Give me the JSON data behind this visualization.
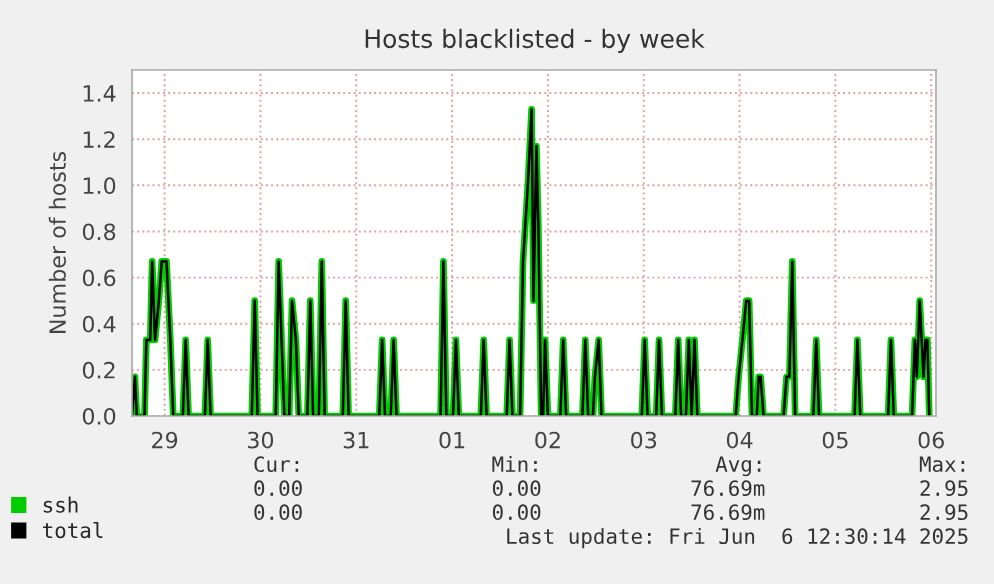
{
  "chart_data": {
    "type": "line",
    "title": "Hosts blacklisted - by week",
    "ylabel": "Number of hosts",
    "x": [
      "2025-05-28T15:50",
      "2025-05-28T16:34",
      "2025-05-28T17:02",
      "2025-05-28T18:58",
      "2025-05-28T19:26",
      "2025-05-28T20:24",
      "2025-05-28T20:53",
      "2025-05-28T21:36",
      "2025-05-28T22:34",
      "2025-05-28T23:17",
      "2025-05-29T00:29",
      "2025-05-29T01:26",
      "2025-05-29T02:10",
      "2025-05-29T04:34",
      "2025-05-29T05:17",
      "2025-05-29T06:00",
      "2025-05-29T10:05",
      "2025-05-29T10:48",
      "2025-05-29T11:31",
      "2025-05-29T21:50",
      "2025-05-29T22:34",
      "2025-05-29T23:17",
      "2025-05-30T03:50",
      "2025-05-30T04:34",
      "2025-05-30T06:00",
      "2025-05-30T07:12",
      "2025-05-30T07:55",
      "2025-05-30T08:53",
      "2025-05-30T09:36",
      "2025-05-30T11:46",
      "2025-05-30T12:29",
      "2025-05-30T13:12",
      "2025-05-30T14:38",
      "2025-05-30T15:22",
      "2025-05-30T16:05",
      "2025-05-30T20:38",
      "2025-05-30T21:22",
      "2025-05-30T22:05",
      "2025-05-31T05:46",
      "2025-05-31T06:29",
      "2025-05-31T07:12",
      "2025-05-31T08:38",
      "2025-05-31T09:22",
      "2025-05-31T10:05",
      "2025-05-31T21:07",
      "2025-05-31T21:50",
      "2025-05-31T22:34",
      "2025-06-01T00:14",
      "2025-06-01T00:58",
      "2025-06-01T01:41",
      "2025-06-01T07:12",
      "2025-06-01T07:55",
      "2025-06-01T08:38",
      "2025-06-01T13:41",
      "2025-06-01T14:24",
      "2025-06-01T15:07",
      "2025-06-01T17:02",
      "2025-06-01T17:46",
      "2025-06-01T18:58",
      "2025-06-01T19:55",
      "2025-06-01T20:24",
      "2025-06-01T21:07",
      "2025-06-01T21:36",
      "2025-06-01T22:19",
      "2025-06-01T22:48",
      "2025-06-01T23:17",
      "2025-06-02T00:00",
      "2025-06-02T03:07",
      "2025-06-02T03:50",
      "2025-06-02T04:34",
      "2025-06-02T08:38",
      "2025-06-02T09:22",
      "2025-06-02T10:05",
      "2025-06-02T11:17",
      "2025-06-02T11:46",
      "2025-06-02T12:43",
      "2025-06-02T13:26",
      "2025-06-02T23:31",
      "2025-06-03T00:14",
      "2025-06-03T00:58",
      "2025-06-03T03:07",
      "2025-06-03T03:50",
      "2025-06-03T04:34",
      "2025-06-03T07:55",
      "2025-06-03T08:38",
      "2025-06-03T09:22",
      "2025-06-03T10:34",
      "2025-06-03T11:17",
      "2025-06-03T12:00",
      "2025-06-03T12:43",
      "2025-06-03T13:26",
      "2025-06-03T23:02",
      "2025-06-03T23:46",
      "2025-06-04T00:43",
      "2025-06-04T01:41",
      "2025-06-04T02:24",
      "2025-06-04T03:07",
      "2025-06-04T04:19",
      "2025-06-04T04:48",
      "2025-06-04T05:17",
      "2025-06-04T06:00",
      "2025-06-04T11:02",
      "2025-06-04T11:46",
      "2025-06-04T12:29",
      "2025-06-04T13:12",
      "2025-06-04T13:55",
      "2025-06-04T18:29",
      "2025-06-04T19:12",
      "2025-06-04T19:55",
      "2025-06-05T04:48",
      "2025-06-05T05:31",
      "2025-06-05T06:14",
      "2025-06-05T13:12",
      "2025-06-05T13:55",
      "2025-06-05T14:38",
      "2025-06-05T19:12",
      "2025-06-05T19:55",
      "2025-06-05T20:24",
      "2025-06-05T21:07",
      "2025-06-05T22:05",
      "2025-06-05T22:34",
      "2025-06-05T23:02",
      "2025-06-05T23:31"
    ],
    "series": [
      {
        "name": "ssh",
        "color": "#00cc00",
        "values": [
          0,
          0.17,
          0,
          0,
          0.33,
          0.33,
          0.67,
          0.33,
          0.5,
          0.67,
          0.67,
          0.33,
          0,
          0,
          0.33,
          0,
          0,
          0.33,
          0,
          0,
          0.5,
          0,
          0,
          0.67,
          0,
          0,
          0.5,
          0.33,
          0,
          0,
          0.5,
          0,
          0,
          0.67,
          0,
          0,
          0.5,
          0,
          0,
          0.33,
          0,
          0,
          0.33,
          0,
          0,
          0.67,
          0,
          0,
          0.33,
          0,
          0,
          0.33,
          0,
          0,
          0.33,
          0,
          0,
          0.67,
          1.0,
          1.33,
          0.5,
          1.17,
          0.83,
          0,
          0,
          0.33,
          0,
          0,
          0.33,
          0,
          0,
          0.33,
          0,
          0,
          0.17,
          0.33,
          0,
          0,
          0.33,
          0,
          0,
          0.33,
          0,
          0,
          0.33,
          0,
          0,
          0.33,
          0,
          0.33,
          0,
          0,
          0.17,
          0.33,
          0.5,
          0.5,
          0,
          0,
          0.17,
          0.17,
          0,
          0,
          0.17,
          0.17,
          0.67,
          0,
          0,
          0.33,
          0,
          0,
          0.33,
          0,
          0,
          0.33,
          0,
          0,
          0.33,
          0.17,
          0.5,
          0.17,
          0.33,
          0.33,
          0
        ]
      },
      {
        "name": "total",
        "color": "#000000",
        "values": [
          0,
          0.17,
          0,
          0,
          0.33,
          0.33,
          0.67,
          0.33,
          0.5,
          0.67,
          0.67,
          0.33,
          0,
          0,
          0.33,
          0,
          0,
          0.33,
          0,
          0,
          0.5,
          0,
          0,
          0.67,
          0,
          0,
          0.5,
          0.33,
          0,
          0,
          0.5,
          0,
          0,
          0.67,
          0,
          0,
          0.5,
          0,
          0,
          0.33,
          0,
          0,
          0.33,
          0,
          0,
          0.67,
          0,
          0,
          0.33,
          0,
          0,
          0.33,
          0,
          0,
          0.33,
          0,
          0,
          0.67,
          1.0,
          1.33,
          0.5,
          1.17,
          0.83,
          0,
          0,
          0.33,
          0,
          0,
          0.33,
          0,
          0,
          0.33,
          0,
          0,
          0.17,
          0.33,
          0,
          0,
          0.33,
          0,
          0,
          0.33,
          0,
          0,
          0.33,
          0,
          0,
          0.33,
          0,
          0.33,
          0,
          0,
          0.17,
          0.33,
          0.5,
          0.5,
          0,
          0,
          0.17,
          0.17,
          0,
          0,
          0.17,
          0.17,
          0.67,
          0,
          0,
          0.33,
          0,
          0,
          0.33,
          0,
          0,
          0.33,
          0,
          0,
          0.33,
          0.17,
          0.5,
          0.17,
          0.33,
          0.33,
          0
        ]
      }
    ],
    "xlim": [
      "2025-05-28T15:50",
      "2025-06-06T01:12"
    ],
    "xticks": [
      {
        "value": "2025-05-29",
        "label": "29"
      },
      {
        "value": "2025-05-30",
        "label": "30"
      },
      {
        "value": "2025-05-31",
        "label": "31"
      },
      {
        "value": "2025-06-01",
        "label": "01"
      },
      {
        "value": "2025-06-02",
        "label": "02"
      },
      {
        "value": "2025-06-03",
        "label": "03"
      },
      {
        "value": "2025-06-04",
        "label": "04"
      },
      {
        "value": "2025-06-05",
        "label": "05"
      },
      {
        "value": "2025-06-06",
        "label": "06"
      }
    ],
    "ylim": [
      0,
      1.5
    ],
    "yticks": [
      {
        "value": 0,
        "label": "0.0"
      },
      {
        "value": 0.2,
        "label": "0.2"
      },
      {
        "value": 0.4,
        "label": "0.4"
      },
      {
        "value": 0.6,
        "label": "0.6"
      },
      {
        "value": 0.8,
        "label": "0.8"
      },
      {
        "value": 1.0,
        "label": "1.0"
      },
      {
        "value": 1.2,
        "label": "1.2"
      },
      {
        "value": 1.4,
        "label": "1.4"
      }
    ],
    "grid": true,
    "legend": "bottom left",
    "marker": "none",
    "line_style": "solid",
    "annotations": [
      "Cur:",
      "Min:",
      "Avg:",
      "Max:",
      "0.00",
      "0.00",
      "76.69m",
      "2.95",
      "0.00",
      "0.00",
      "76.69m",
      "2.95",
      "Last update: Fri Jun  6 12:30:14 2025"
    ]
  }
}
